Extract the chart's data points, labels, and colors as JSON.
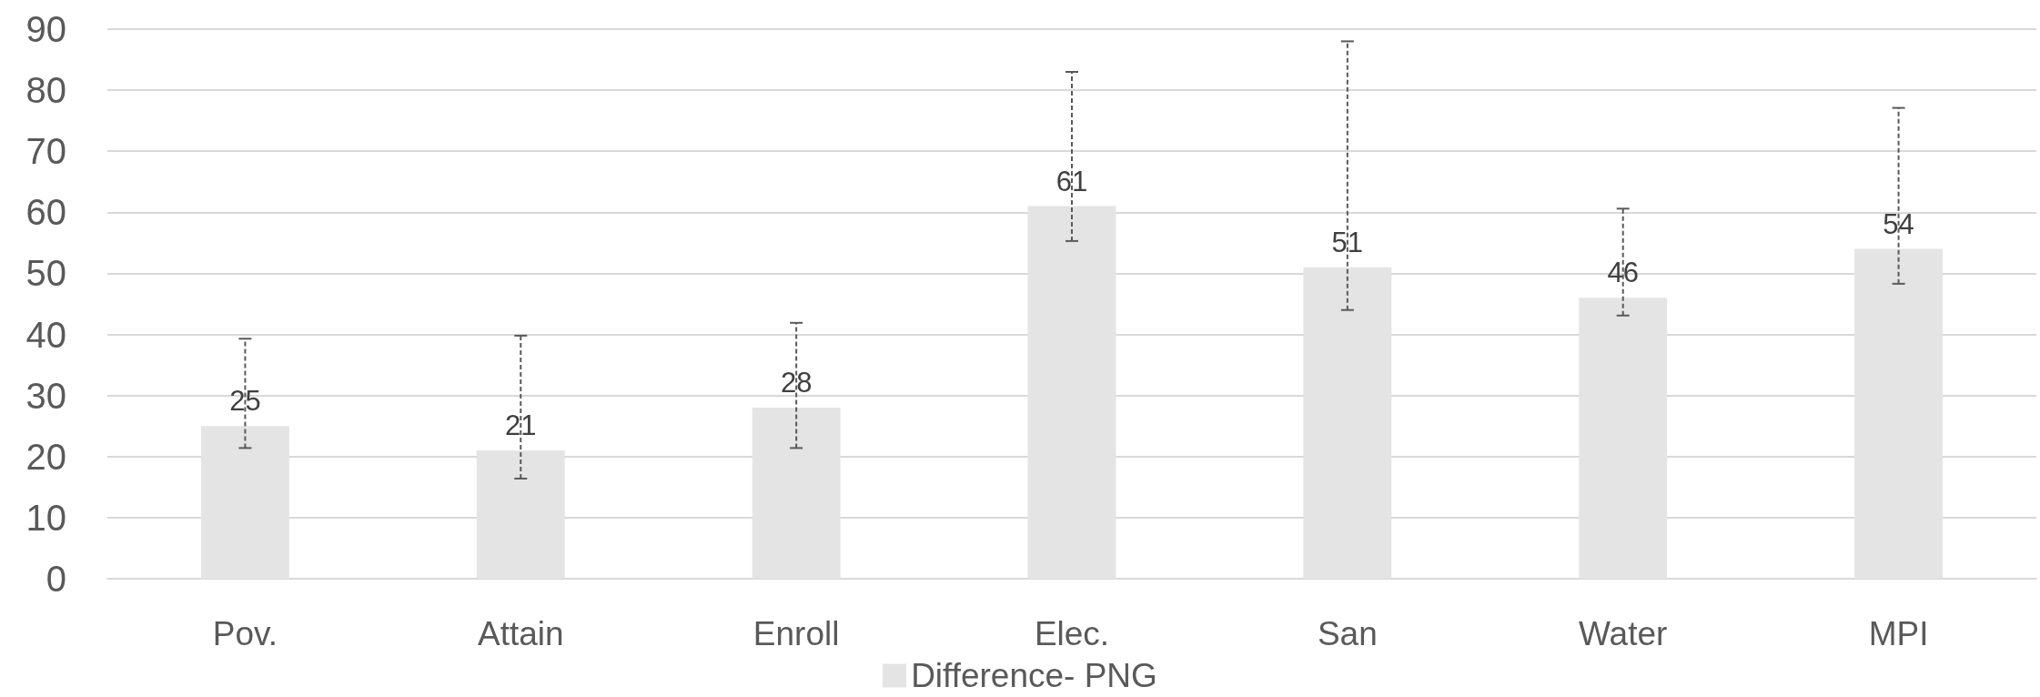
{
  "chart_data": {
    "type": "bar",
    "categories": [
      "Pov.",
      "Attain",
      "Enroll",
      "Elec.",
      "San",
      "Water",
      "MPI"
    ],
    "series": [
      {
        "name": "Difference- PNG",
        "color": "#e4e4e4",
        "values": [
          25,
          21,
          28,
          61,
          51,
          46,
          54
        ],
        "errors": [
          [
            21.4,
            39.3
          ],
          [
            16.4,
            39.8
          ],
          [
            21.4,
            41.9
          ],
          [
            55.3,
            83.0
          ],
          [
            44.0,
            88.0
          ],
          [
            43.1,
            60.6
          ],
          [
            48.3,
            77.1
          ]
        ]
      }
    ],
    "ylim": [
      0,
      90
    ],
    "yticks": [
      0,
      10,
      20,
      30,
      40,
      50,
      60,
      70,
      80,
      90
    ],
    "grid": "y",
    "legend": "bottom",
    "data_labels": true
  }
}
